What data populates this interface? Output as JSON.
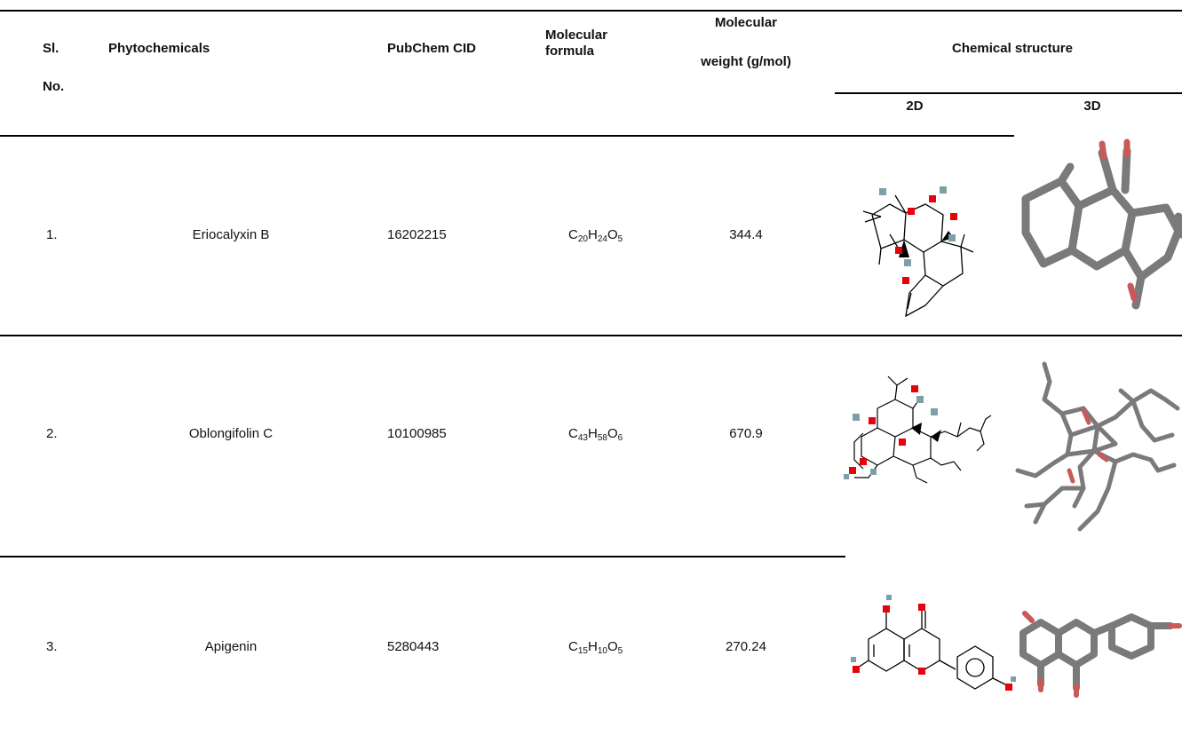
{
  "header": {
    "sl": "Sl.",
    "no": "No.",
    "phytochemicals": "Phytochemicals",
    "pubchem_cid": "PubChem CID",
    "molecular_formula_1": "Molecular",
    "molecular_formula_2": "formula",
    "molecular_weight_1": "Molecular",
    "molecular_weight_2": "weight (g/mol)",
    "chemical_structure": "Chemical structure",
    "col_2d": "2D",
    "col_3d": "3D"
  },
  "rows": [
    {
      "sl": "1.",
      "name": "Eriocalyxin B",
      "cid": "16202215",
      "formula": [
        {
          "el": "C",
          "n": "20"
        },
        {
          "el": "H",
          "n": "24"
        },
        {
          "el": "O",
          "n": "5"
        }
      ],
      "weight": "344.4"
    },
    {
      "sl": "2.",
      "name": "Oblongifolin C",
      "cid": "10100985",
      "formula": [
        {
          "el": "C",
          "n": "43"
        },
        {
          "el": "H",
          "n": "58"
        },
        {
          "el": "O",
          "n": "6"
        }
      ],
      "weight": "670.9"
    },
    {
      "sl": "3.",
      "name": "Apigenin",
      "cid": "5280443",
      "formula": [
        {
          "el": "C",
          "n": "15"
        },
        {
          "el": "H",
          "n": "10"
        },
        {
          "el": "O",
          "n": "5"
        }
      ],
      "weight": "270.24"
    }
  ],
  "colors": {
    "oxygen": "#e8000b",
    "hydrogen": "#7f9fa6",
    "bond_3d": "#7a7a7a",
    "rule": "#000000"
  }
}
